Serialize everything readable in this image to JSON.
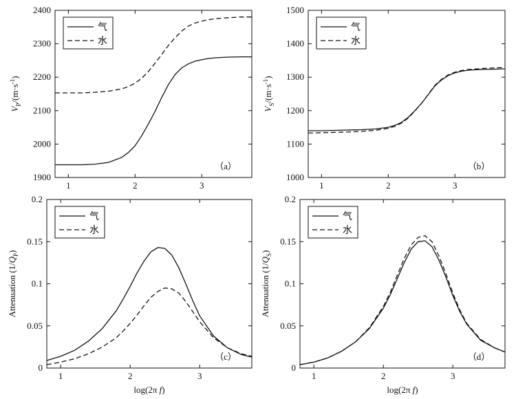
{
  "chart_data": [
    {
      "id": "a",
      "type": "line",
      "panel_label": "（a）",
      "ylabel_parts": [
        "V",
        "P",
        "/(m·s",
        "-1",
        ")"
      ],
      "xlabel": "",
      "xlim": [
        0.8,
        3.75
      ],
      "ylim": [
        1900,
        2400
      ],
      "xticks": [
        1,
        2,
        3
      ],
      "yticks": [
        1900,
        2000,
        2100,
        2200,
        2300,
        2400
      ],
      "legend_position": "top-left",
      "series": [
        {
          "name": "气",
          "style": "solid",
          "x": [
            0.8,
            1.0,
            1.2,
            1.4,
            1.6,
            1.8,
            1.9,
            2.0,
            2.1,
            2.2,
            2.3,
            2.4,
            2.5,
            2.6,
            2.7,
            2.8,
            2.9,
            3.0,
            3.1,
            3.2,
            3.4,
            3.6,
            3.75
          ],
          "y": [
            1938,
            1938,
            1938,
            1940,
            1945,
            1960,
            1975,
            1995,
            2025,
            2060,
            2098,
            2140,
            2178,
            2208,
            2228,
            2240,
            2248,
            2252,
            2256,
            2258,
            2260,
            2261,
            2261
          ]
        },
        {
          "name": "水",
          "style": "dashed",
          "x": [
            0.8,
            1.0,
            1.2,
            1.4,
            1.6,
            1.8,
            1.9,
            2.0,
            2.1,
            2.2,
            2.3,
            2.4,
            2.5,
            2.6,
            2.7,
            2.8,
            2.9,
            3.0,
            3.1,
            3.2,
            3.4,
            3.6,
            3.75
          ],
          "y": [
            2153,
            2153,
            2153,
            2155,
            2158,
            2165,
            2172,
            2182,
            2197,
            2217,
            2242,
            2268,
            2295,
            2318,
            2338,
            2353,
            2362,
            2368,
            2372,
            2375,
            2378,
            2380,
            2380
          ]
        }
      ]
    },
    {
      "id": "b",
      "type": "line",
      "panel_label": "（b）",
      "ylabel_parts": [
        "V",
        "S",
        "/(m·s",
        "-1",
        ")"
      ],
      "xlabel": "",
      "xlim": [
        0.8,
        3.75
      ],
      "ylim": [
        1000,
        1500
      ],
      "xticks": [
        1,
        2,
        3
      ],
      "yticks": [
        1000,
        1100,
        1200,
        1300,
        1400,
        1500
      ],
      "legend_position": "top-left",
      "series": [
        {
          "name": "气",
          "style": "solid",
          "x": [
            0.8,
            1.0,
            1.2,
            1.4,
            1.6,
            1.8,
            2.0,
            2.1,
            2.2,
            2.3,
            2.4,
            2.5,
            2.6,
            2.7,
            2.8,
            2.9,
            3.0,
            3.1,
            3.2,
            3.4,
            3.6,
            3.75
          ],
          "y": [
            1140,
            1140,
            1141,
            1142,
            1143,
            1145,
            1150,
            1156,
            1165,
            1180,
            1200,
            1222,
            1248,
            1274,
            1292,
            1305,
            1313,
            1318,
            1321,
            1323,
            1324,
            1325
          ]
        },
        {
          "name": "水",
          "style": "dashed",
          "x": [
            0.8,
            1.0,
            1.2,
            1.4,
            1.6,
            1.8,
            2.0,
            2.1,
            2.2,
            2.3,
            2.4,
            2.5,
            2.6,
            2.7,
            2.8,
            2.9,
            3.0,
            3.1,
            3.2,
            3.4,
            3.6,
            3.75
          ],
          "y": [
            1133,
            1134,
            1135,
            1136,
            1138,
            1141,
            1147,
            1153,
            1163,
            1178,
            1199,
            1222,
            1249,
            1276,
            1294,
            1307,
            1315,
            1320,
            1323,
            1326,
            1328,
            1329
          ]
        }
      ]
    },
    {
      "id": "c",
      "type": "line",
      "panel_label": "（c）",
      "ylabel_parts": [
        "Attenuation (1/",
        "Q",
        "P",
        ")"
      ],
      "xlabel_parts": [
        "log(2π ",
        "f",
        ")"
      ],
      "xlim": [
        0.8,
        3.75
      ],
      "ylim": [
        0,
        0.2
      ],
      "xticks": [
        1,
        2,
        3
      ],
      "yticks": [
        0,
        0.05,
        0.1,
        0.15,
        0.2
      ],
      "ytick_labels": [
        "0",
        "0.05",
        "0.1",
        "0.15",
        "0.2"
      ],
      "legend_position": "top-left",
      "series": [
        {
          "name": "气",
          "style": "solid",
          "x": [
            0.8,
            1.0,
            1.2,
            1.4,
            1.6,
            1.8,
            1.9,
            2.0,
            2.1,
            2.2,
            2.3,
            2.4,
            2.5,
            2.6,
            2.7,
            2.8,
            2.9,
            3.0,
            3.2,
            3.4,
            3.6,
            3.75
          ],
          "y": [
            0.009,
            0.014,
            0.021,
            0.032,
            0.047,
            0.068,
            0.082,
            0.097,
            0.113,
            0.127,
            0.138,
            0.143,
            0.142,
            0.134,
            0.119,
            0.1,
            0.08,
            0.062,
            0.038,
            0.024,
            0.016,
            0.013
          ]
        },
        {
          "name": "水",
          "style": "dashed",
          "x": [
            0.8,
            1.0,
            1.2,
            1.4,
            1.6,
            1.8,
            1.9,
            2.0,
            2.1,
            2.2,
            2.3,
            2.4,
            2.5,
            2.6,
            2.7,
            2.8,
            2.9,
            3.0,
            3.2,
            3.4,
            3.6,
            3.75
          ],
          "y": [
            0.004,
            0.007,
            0.011,
            0.017,
            0.025,
            0.036,
            0.044,
            0.053,
            0.063,
            0.074,
            0.084,
            0.091,
            0.095,
            0.094,
            0.089,
            0.079,
            0.067,
            0.055,
            0.036,
            0.024,
            0.017,
            0.014
          ]
        }
      ]
    },
    {
      "id": "d",
      "type": "line",
      "panel_label": "（d）",
      "ylabel_parts": [
        "Attenuation (1/",
        "Q",
        "S",
        ")"
      ],
      "xlabel_parts": [
        "log(2π ",
        "f",
        ")"
      ],
      "xlim": [
        0.8,
        3.75
      ],
      "ylim": [
        0,
        0.2
      ],
      "xticks": [
        1,
        2,
        3
      ],
      "yticks": [
        0,
        0.05,
        0.1,
        0.15,
        0.2
      ],
      "ytick_labels": [
        "0",
        "0.05",
        "0.1",
        "0.15",
        "0.2"
      ],
      "legend_position": "top-left",
      "series": [
        {
          "name": "气",
          "style": "solid",
          "x": [
            0.8,
            1.0,
            1.2,
            1.4,
            1.6,
            1.8,
            2.0,
            2.1,
            2.2,
            2.3,
            2.4,
            2.5,
            2.6,
            2.7,
            2.8,
            2.9,
            3.0,
            3.1,
            3.2,
            3.4,
            3.6,
            3.75
          ],
          "y": [
            0.004,
            0.007,
            0.012,
            0.02,
            0.031,
            0.047,
            0.071,
            0.087,
            0.106,
            0.125,
            0.141,
            0.15,
            0.151,
            0.144,
            0.128,
            0.108,
            0.086,
            0.067,
            0.052,
            0.033,
            0.024,
            0.019
          ]
        },
        {
          "name": "水",
          "style": "dashed",
          "x": [
            0.8,
            1.0,
            1.2,
            1.4,
            1.6,
            1.8,
            2.0,
            2.1,
            2.2,
            2.3,
            2.4,
            2.5,
            2.6,
            2.7,
            2.8,
            2.9,
            3.0,
            3.1,
            3.2,
            3.4,
            3.6,
            3.75
          ],
          "y": [
            0.004,
            0.007,
            0.012,
            0.02,
            0.031,
            0.048,
            0.073,
            0.09,
            0.11,
            0.13,
            0.146,
            0.155,
            0.157,
            0.15,
            0.133,
            0.112,
            0.089,
            0.069,
            0.053,
            0.034,
            0.024,
            0.019
          ]
        }
      ]
    }
  ]
}
